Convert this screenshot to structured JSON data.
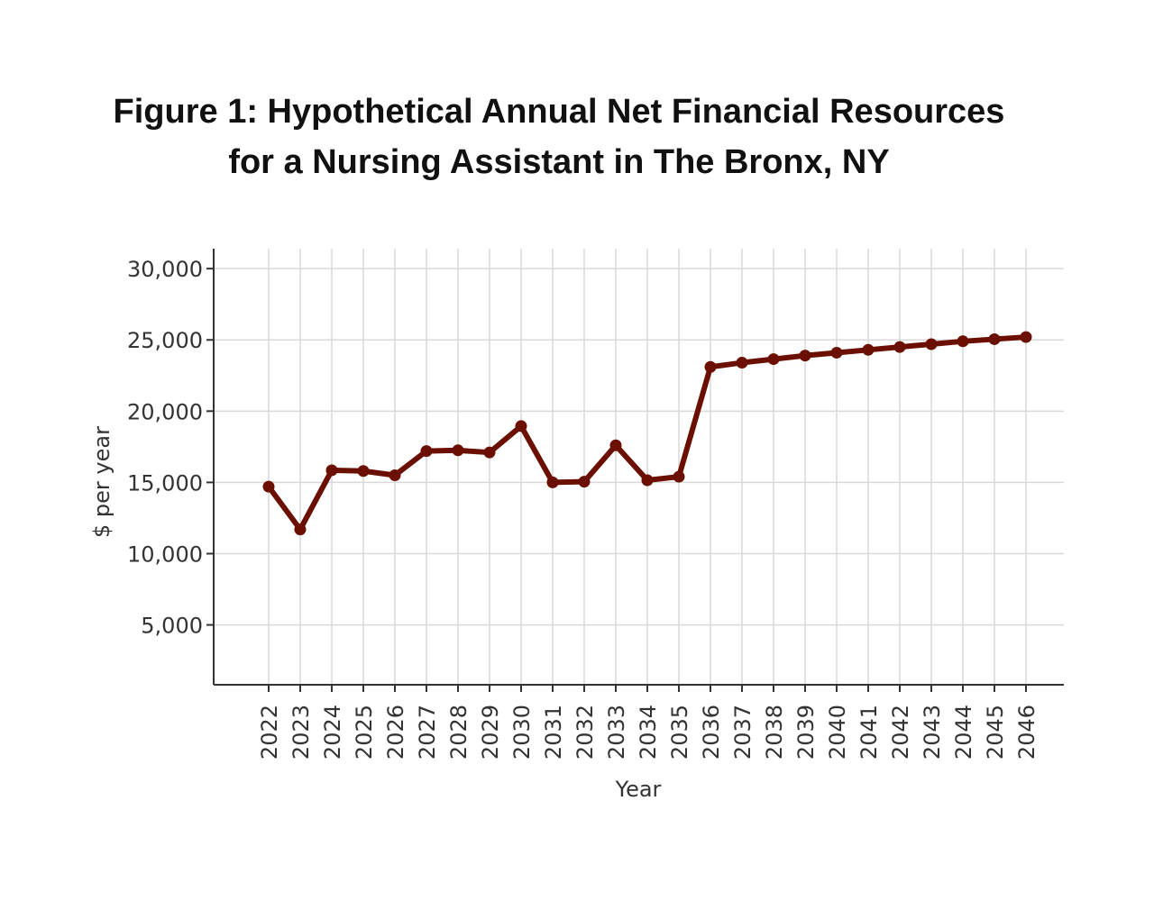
{
  "title": {
    "line1": "Figure 1: Hypothetical Annual Net Financial Resources",
    "line2": "for a Nursing Assistant in The Bronx, NY"
  },
  "chart_data": {
    "type": "line",
    "title": "Figure 1: Hypothetical Annual Net Financial Resources for a Nursing Assistant in The Bronx, NY",
    "xlabel": "Year",
    "ylabel": "$ per year",
    "x": [
      "2022",
      "2023",
      "2024",
      "2025",
      "2026",
      "2027",
      "2028",
      "2029",
      "2030",
      "2031",
      "2032",
      "2033",
      "2034",
      "2035",
      "2036",
      "2037",
      "2038",
      "2039",
      "2040",
      "2041",
      "2042",
      "2043",
      "2044",
      "2045",
      "2046"
    ],
    "series": [
      {
        "color": "#6b0f00",
        "values": [
          14700,
          11700,
          15850,
          15800,
          15500,
          17200,
          17250,
          17100,
          18950,
          15000,
          15050,
          17600,
          15150,
          15400,
          23100,
          23400,
          23650,
          23900,
          24100,
          24300,
          24500,
          24700,
          24900,
          25050,
          25200
        ]
      }
    ],
    "yticks": [
      5000,
      10000,
      15000,
      20000,
      25000,
      30000
    ],
    "ytick_labels": [
      "5,000",
      "10,000",
      "15,000",
      "20,000",
      "25,000",
      "30,000"
    ],
    "ylim": [
      800,
      31400
    ],
    "grid": true,
    "legend": "none"
  }
}
